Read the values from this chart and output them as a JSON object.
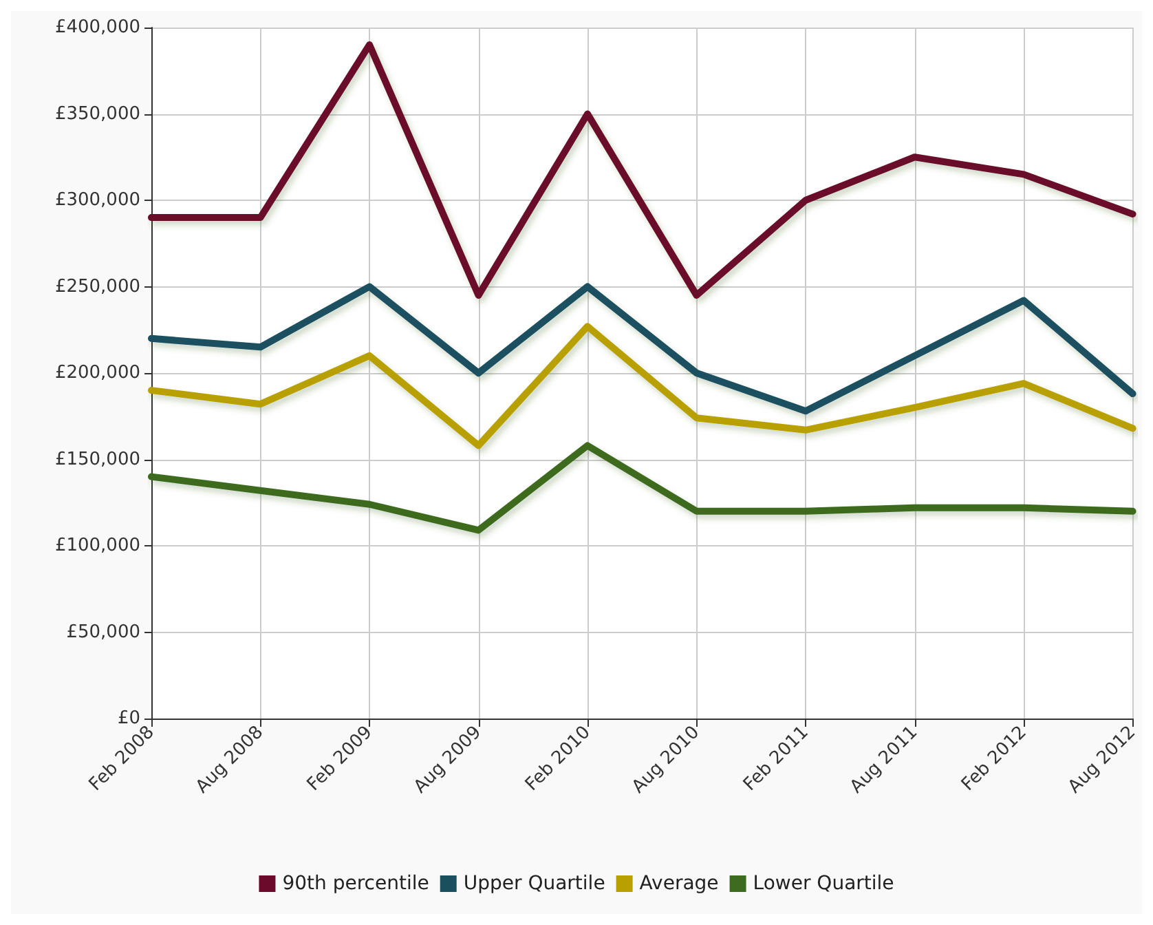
{
  "chart_data": {
    "type": "line",
    "categories": [
      "Feb 2008",
      "Aug 2008",
      "Feb 2009",
      "Aug 2009",
      "Feb 2010",
      "Aug 2010",
      "Feb 2011",
      "Aug 2011",
      "Feb 2012",
      "Aug 2012"
    ],
    "series": [
      {
        "name": "90th percentile",
        "color": "#6b0a2a",
        "values": [
          290000,
          290000,
          390000,
          245000,
          350000,
          245000,
          300000,
          325000,
          315000,
          292000
        ]
      },
      {
        "name": "Upper Quartile",
        "color": "#1a4f5e",
        "values": [
          220000,
          215000,
          250000,
          200000,
          250000,
          200000,
          178000,
          210000,
          242000,
          188000
        ]
      },
      {
        "name": "Average",
        "color": "#b8a000",
        "values": [
          190000,
          182000,
          210000,
          158000,
          227000,
          174000,
          167000,
          180000,
          194000,
          168000
        ]
      },
      {
        "name": "Lower Quartile",
        "color": "#3d6b1f",
        "values": [
          140000,
          132000,
          124000,
          109000,
          158000,
          120000,
          120000,
          122000,
          122000,
          120000
        ]
      }
    ],
    "ylim": [
      0,
      400000
    ],
    "yticks": [
      {
        "value": 0,
        "label": "£0"
      },
      {
        "value": 50000,
        "label": "£50,000"
      },
      {
        "value": 100000,
        "label": "£100,000"
      },
      {
        "value": 150000,
        "label": "£150,000"
      },
      {
        "value": 200000,
        "label": "£200,000"
      },
      {
        "value": 250000,
        "label": "£250,000"
      },
      {
        "value": 300000,
        "label": "£300,000"
      },
      {
        "value": 350000,
        "label": "£350,000"
      },
      {
        "value": 400000,
        "label": "£400,000"
      }
    ],
    "grid": true,
    "legend": "bottom",
    "marker": "none",
    "line_style": "solid"
  }
}
